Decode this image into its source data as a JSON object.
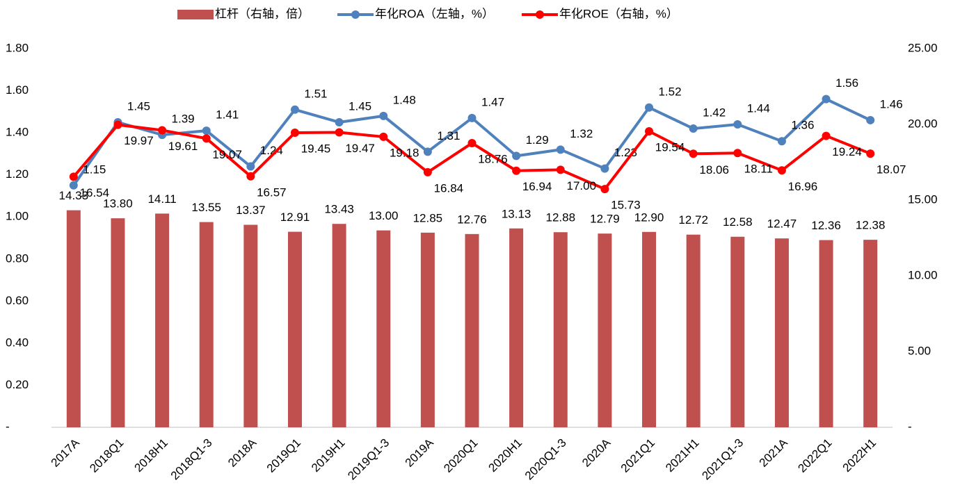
{
  "chart_data": {
    "type": "bar_line",
    "categories": [
      "2017A",
      "2018Q1",
      "2018H1",
      "2018Q1-3",
      "2018A",
      "2019Q1",
      "2019H1",
      "2019Q1-3",
      "2019A",
      "2020Q1",
      "2020H1",
      "2020Q1-3",
      "2020A",
      "2021Q1",
      "2021H1",
      "2021Q1-3",
      "2021A",
      "2022Q1",
      "2022H1"
    ],
    "series": [
      {
        "name": "杠杆（右轴，倍）",
        "type": "bar",
        "axis": "y2",
        "color": "#c0504d",
        "values": [
          14.33,
          13.8,
          14.11,
          13.55,
          13.37,
          12.91,
          13.43,
          13.0,
          12.85,
          12.76,
          13.13,
          12.88,
          12.79,
          12.9,
          12.72,
          12.58,
          12.47,
          12.36,
          12.38
        ],
        "value_labels": [
          "14.33",
          "13.80",
          "14.11",
          "13.55",
          "13.37",
          "12.91",
          "13.43",
          "13.00",
          "12.85",
          "12.76",
          "13.13",
          "12.88",
          "12.79",
          "12.90",
          "12.72",
          "12.58",
          "12.47",
          "12.36",
          "12.38"
        ]
      },
      {
        "name": "年化ROA（左轴，%）",
        "type": "line",
        "axis": "y",
        "color": "#4f81bd",
        "values": [
          1.15,
          1.45,
          1.39,
          1.41,
          1.24,
          1.51,
          1.45,
          1.48,
          1.31,
          1.47,
          1.29,
          1.32,
          1.23,
          1.52,
          1.42,
          1.44,
          1.36,
          1.56,
          1.46
        ],
        "value_labels": [
          "1.15",
          "1.45",
          "1.39",
          "1.41",
          "1.24",
          "1.51",
          "1.45",
          "1.48",
          "1.31",
          "1.47",
          "1.29",
          "1.32",
          "1.23",
          "1.52",
          "1.42",
          "1.44",
          "1.36",
          "1.56",
          "1.46"
        ]
      },
      {
        "name": "年化ROE（右轴，%）",
        "type": "line",
        "axis": "y2",
        "color": "#ff0000",
        "values": [
          16.54,
          19.97,
          19.61,
          19.07,
          16.57,
          19.45,
          19.47,
          19.18,
          16.84,
          18.76,
          16.94,
          17.0,
          15.73,
          19.54,
          18.06,
          18.11,
          16.96,
          19.24,
          18.07
        ],
        "value_labels": [
          "16.54",
          "19.97",
          "19.61",
          "19.07",
          "16.57",
          "19.45",
          "19.47",
          "19.18",
          "16.84",
          "18.76",
          "16.94",
          "17.00",
          "15.73",
          "19.54",
          "18.06",
          "18.11",
          "16.96",
          "19.24",
          "18.07"
        ]
      }
    ],
    "ylim": [
      0,
      1.8
    ],
    "yticks": [
      {
        "value": 0,
        "label": "-"
      },
      {
        "value": 0.2,
        "label": "0.20"
      },
      {
        "value": 0.4,
        "label": "0.40"
      },
      {
        "value": 0.6,
        "label": "0.60"
      },
      {
        "value": 0.8,
        "label": "0.80"
      },
      {
        "value": 1.0,
        "label": "1.00"
      },
      {
        "value": 1.2,
        "label": "1.20"
      },
      {
        "value": 1.4,
        "label": "1.40"
      },
      {
        "value": 1.6,
        "label": "1.60"
      },
      {
        "value": 1.8,
        "label": "1.80"
      }
    ],
    "y2lim": [
      0,
      25
    ],
    "y2ticks": [
      {
        "value": 0,
        "label": "-"
      },
      {
        "value": 5,
        "label": "5.00"
      },
      {
        "value": 10,
        "label": "10.00"
      },
      {
        "value": 15,
        "label": "15.00"
      },
      {
        "value": 20,
        "label": "20.00"
      },
      {
        "value": 25,
        "label": "25.00"
      }
    ],
    "legend": "top"
  }
}
